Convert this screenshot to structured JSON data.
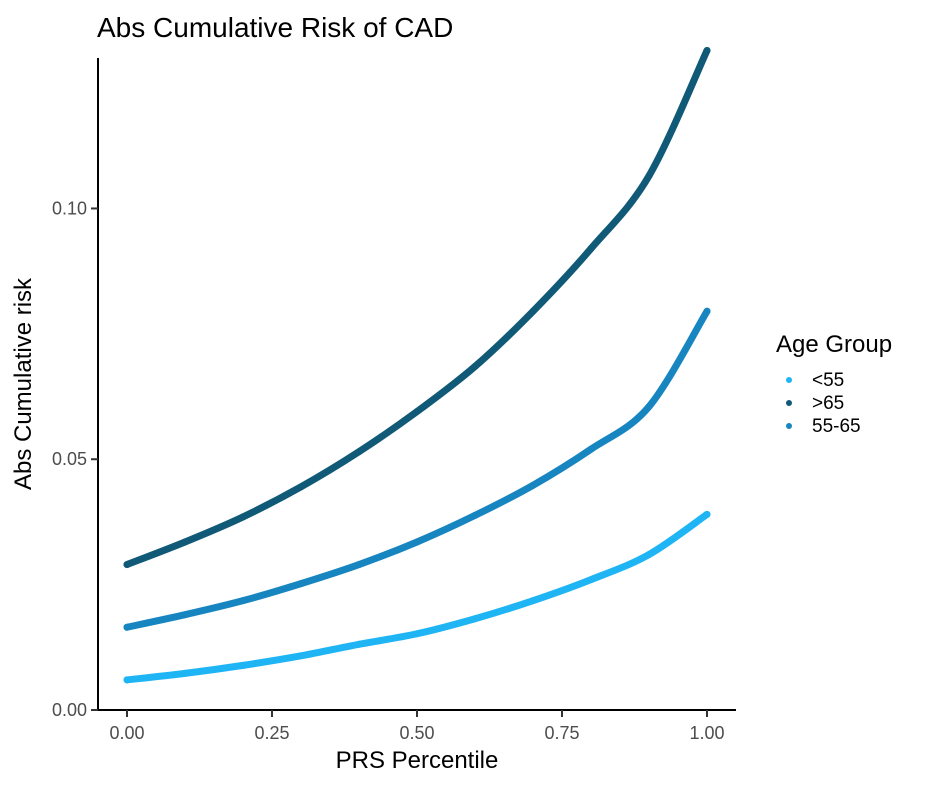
{
  "chart_data": {
    "type": "scatter",
    "title": "Abs Cumulative Risk of CAD",
    "xlabel": "PRS Percentile",
    "ylabel": "Abs Cumulative risk",
    "xlim": [
      -0.05,
      1.05
    ],
    "ylim": [
      0.0,
      0.13
    ],
    "x_ticks": [
      0.0,
      0.25,
      0.5,
      0.75,
      1.0
    ],
    "x_tick_labels": [
      "0.00",
      "0.25",
      "0.50",
      "0.75",
      "1.00"
    ],
    "y_ticks": [
      0.0,
      0.05,
      0.1
    ],
    "y_tick_labels": [
      "0.00",
      "0.05",
      "0.10"
    ],
    "grid": false,
    "legend": {
      "title": "Age Group",
      "placement": "right"
    },
    "x": [
      0.0,
      0.1,
      0.2,
      0.3,
      0.4,
      0.5,
      0.6,
      0.7,
      0.8,
      0.9,
      1.0
    ],
    "series": [
      {
        "name": "<55",
        "color": "#1fb5f5",
        "values": [
          0.006,
          0.0073,
          0.0089,
          0.0108,
          0.0131,
          0.0152,
          0.0182,
          0.0218,
          0.026,
          0.031,
          0.039
        ]
      },
      {
        "name": ">65",
        "color": "#105a78",
        "values": [
          0.029,
          0.0335,
          0.0385,
          0.0445,
          0.0515,
          0.0595,
          0.0685,
          0.0795,
          0.092,
          0.1065,
          0.1315
        ]
      },
      {
        "name": "55-65",
        "color": "#1785c0",
        "values": [
          0.0165,
          0.019,
          0.0218,
          0.0252,
          0.029,
          0.0335,
          0.0388,
          0.0448,
          0.052,
          0.0605,
          0.0795
        ]
      }
    ]
  }
}
